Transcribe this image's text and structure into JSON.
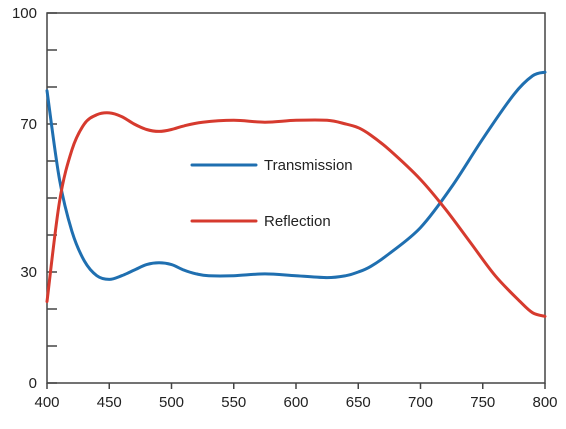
{
  "chart_data": {
    "type": "line",
    "xlim": [
      400,
      800
    ],
    "ylim": [
      0,
      100
    ],
    "x_ticks": [
      400,
      450,
      500,
      550,
      600,
      650,
      700,
      750,
      800
    ],
    "y_ticks": [
      0,
      10,
      20,
      30,
      40,
      50,
      60,
      70,
      80,
      90,
      100
    ],
    "y_tick_labels": [
      {
        "value": 0,
        "label": "0"
      },
      {
        "value": 30,
        "label": "30"
      },
      {
        "value": 70,
        "label": "70"
      },
      {
        "value": 100,
        "label": "100"
      }
    ],
    "grid": false,
    "legend_position": "center",
    "series": [
      {
        "name": "Transmission",
        "color": "#1f6fb0",
        "points": [
          [
            400,
            79
          ],
          [
            410,
            55
          ],
          [
            420,
            41
          ],
          [
            430,
            33
          ],
          [
            440,
            29
          ],
          [
            450,
            28
          ],
          [
            460,
            29
          ],
          [
            470,
            30.5
          ],
          [
            480,
            32
          ],
          [
            490,
            32.5
          ],
          [
            500,
            32
          ],
          [
            510,
            30.5
          ],
          [
            520,
            29.5
          ],
          [
            530,
            29
          ],
          [
            550,
            29
          ],
          [
            575,
            29.5
          ],
          [
            600,
            29
          ],
          [
            625,
            28.5
          ],
          [
            640,
            29
          ],
          [
            650,
            30
          ],
          [
            660,
            31.5
          ],
          [
            675,
            35
          ],
          [
            700,
            42
          ],
          [
            725,
            53
          ],
          [
            750,
            66
          ],
          [
            775,
            78
          ],
          [
            790,
            83
          ],
          [
            800,
            84
          ]
        ]
      },
      {
        "name": "Reflection",
        "color": "#d63a2e",
        "points": [
          [
            400,
            22
          ],
          [
            410,
            49
          ],
          [
            420,
            63
          ],
          [
            430,
            70
          ],
          [
            440,
            72.5
          ],
          [
            450,
            73
          ],
          [
            460,
            72
          ],
          [
            470,
            70
          ],
          [
            480,
            68.5
          ],
          [
            490,
            68
          ],
          [
            500,
            68.5
          ],
          [
            510,
            69.5
          ],
          [
            525,
            70.5
          ],
          [
            550,
            71
          ],
          [
            575,
            70.5
          ],
          [
            600,
            71
          ],
          [
            625,
            71
          ],
          [
            640,
            70
          ],
          [
            650,
            69
          ],
          [
            660,
            67
          ],
          [
            675,
            63
          ],
          [
            700,
            55
          ],
          [
            720,
            47
          ],
          [
            740,
            38
          ],
          [
            760,
            29
          ],
          [
            780,
            22
          ],
          [
            790,
            19
          ],
          [
            800,
            18
          ]
        ]
      }
    ]
  }
}
